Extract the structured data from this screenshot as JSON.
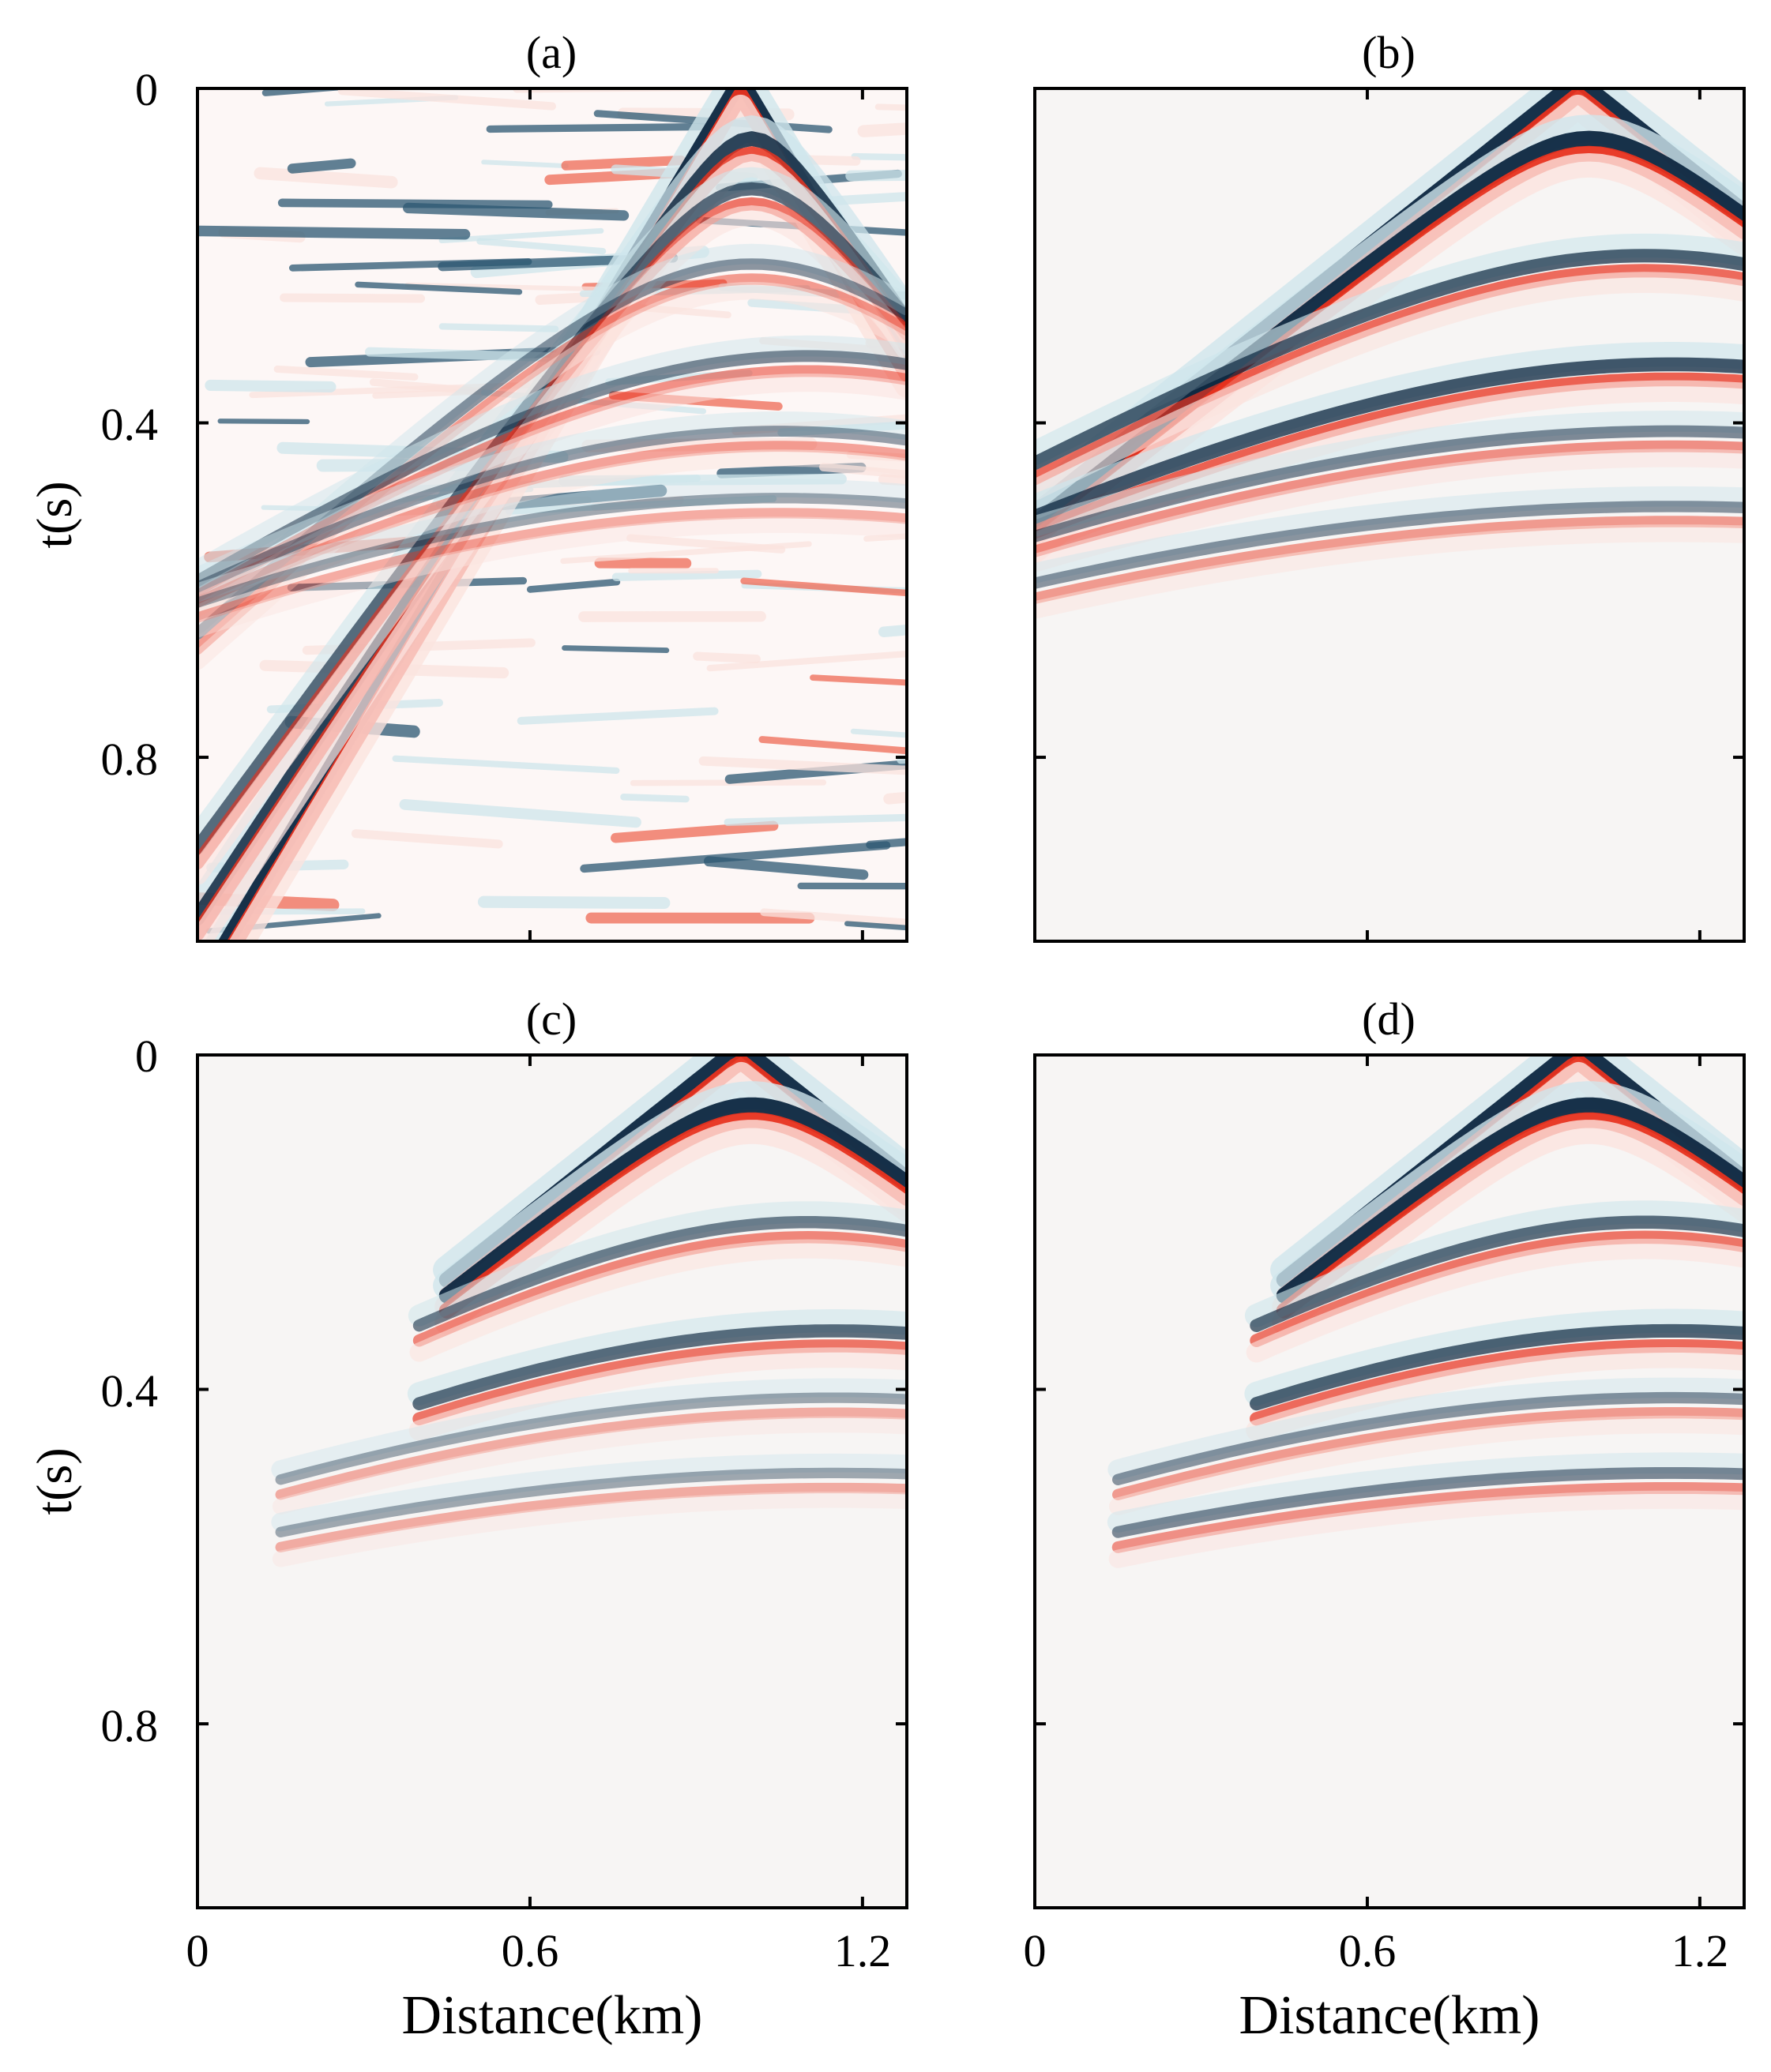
{
  "figure": {
    "colormap": {
      "positive": "#e8321e",
      "negative": "#0d2740",
      "light_positive": "#fbe3de",
      "light_negative": "#cfe6ec",
      "zero": "#f7f5f4"
    }
  },
  "chart_data": [
    {
      "id": "a",
      "type": "heatmap",
      "title": "(a)",
      "xlabel": "",
      "ylabel": "t(s)",
      "xlim": [
        0,
        1.28
      ],
      "ylim": [
        0,
        1.02
      ],
      "y_reversed": true,
      "xticks": [
        0,
        0.6,
        1.2
      ],
      "yticks": [
        0,
        0.4,
        0.8
      ],
      "xtick_labels": [],
      "ytick_labels": [
        "0",
        "0.4",
        "0.8"
      ],
      "style": "noisy",
      "events": [
        {
          "t0": 0.0,
          "xc": 0.98,
          "v": 0.9,
          "amp": 1.0
        },
        {
          "t0": 0.07,
          "xc": 1.0,
          "v": 1.0,
          "amp": 0.9
        },
        {
          "t0": 0.13,
          "xc": 1.0,
          "v": 1.1,
          "amp": 0.7
        },
        {
          "t0": 0.22,
          "xc": 1.0,
          "v": 1.6,
          "amp": 0.5
        },
        {
          "t0": 0.33,
          "xc": 1.1,
          "v": 2.2,
          "amp": 0.55
        },
        {
          "t0": 0.42,
          "xc": 1.05,
          "v": 2.4,
          "amp": 0.45
        },
        {
          "t0": 0.5,
          "xc": 1.05,
          "v": 2.8,
          "amp": 0.4
        }
      ]
    },
    {
      "id": "b",
      "type": "heatmap",
      "title": "(b)",
      "xlabel": "",
      "ylabel": "",
      "xlim": [
        0,
        1.28
      ],
      "ylim": [
        0,
        1.02
      ],
      "y_reversed": true,
      "xticks": [
        0,
        0.6,
        1.2
      ],
      "yticks": [
        0,
        0.4,
        0.8
      ],
      "xtick_labels": [],
      "ytick_labels": [],
      "style": "clean",
      "events": [
        {
          "t0": 0.0,
          "xc": 0.98,
          "v": 1.9,
          "amp": 1.0
        },
        {
          "t0": 0.07,
          "xc": 1.0,
          "v": 1.9,
          "amp": 1.0
        },
        {
          "t0": 0.21,
          "xc": 1.1,
          "v": 2.7,
          "amp": 0.75
        },
        {
          "t0": 0.34,
          "xc": 1.15,
          "v": 2.9,
          "amp": 0.8
        },
        {
          "t0": 0.42,
          "xc": 1.15,
          "v": 3.3,
          "amp": 0.55
        },
        {
          "t0": 0.51,
          "xc": 1.15,
          "v": 3.6,
          "amp": 0.5
        }
      ]
    },
    {
      "id": "c",
      "type": "heatmap",
      "title": "(c)",
      "xlabel": "Distance(km)",
      "ylabel": "t(s)",
      "xlim": [
        0,
        1.28
      ],
      "ylim": [
        0,
        1.02
      ],
      "y_reversed": true,
      "xticks": [
        0,
        0.6,
        1.2
      ],
      "yticks": [
        0,
        0.4,
        0.8
      ],
      "xtick_labels": [
        "0",
        "0.6",
        "1.2"
      ],
      "ytick_labels": [
        "0",
        "0.4",
        "0.8"
      ],
      "style": "partial",
      "cutoff_km": 0.45,
      "events": [
        {
          "t0": 0.0,
          "xc": 0.98,
          "v": 1.9,
          "amp": 1.0
        },
        {
          "t0": 0.07,
          "xc": 1.0,
          "v": 1.9,
          "amp": 1.0
        },
        {
          "t0": 0.21,
          "xc": 1.1,
          "v": 2.7,
          "amp": 0.6
        },
        {
          "t0": 0.34,
          "xc": 1.15,
          "v": 2.9,
          "amp": 0.7
        },
        {
          "t0": 0.42,
          "xc": 1.15,
          "v": 3.3,
          "amp": 0.4
        },
        {
          "t0": 0.51,
          "xc": 1.15,
          "v": 3.6,
          "amp": 0.4
        }
      ]
    },
    {
      "id": "d",
      "type": "heatmap",
      "title": "(d)",
      "xlabel": "Distance(km)",
      "ylabel": "",
      "xlim": [
        0,
        1.28
      ],
      "ylim": [
        0,
        1.02
      ],
      "y_reversed": true,
      "xticks": [
        0,
        0.6,
        1.2
      ],
      "yticks": [
        0,
        0.4,
        0.8
      ],
      "xtick_labels": [
        "0",
        "0.6",
        "1.2"
      ],
      "ytick_labels": [],
      "style": "partial",
      "cutoff_km": 0.45,
      "events": [
        {
          "t0": 0.0,
          "xc": 0.98,
          "v": 1.9,
          "amp": 1.0
        },
        {
          "t0": 0.07,
          "xc": 1.0,
          "v": 1.9,
          "amp": 1.0
        },
        {
          "t0": 0.21,
          "xc": 1.1,
          "v": 2.7,
          "amp": 0.7
        },
        {
          "t0": 0.34,
          "xc": 1.15,
          "v": 2.9,
          "amp": 0.75
        },
        {
          "t0": 0.42,
          "xc": 1.15,
          "v": 3.3,
          "amp": 0.5
        },
        {
          "t0": 0.51,
          "xc": 1.15,
          "v": 3.6,
          "amp": 0.55
        }
      ]
    }
  ]
}
